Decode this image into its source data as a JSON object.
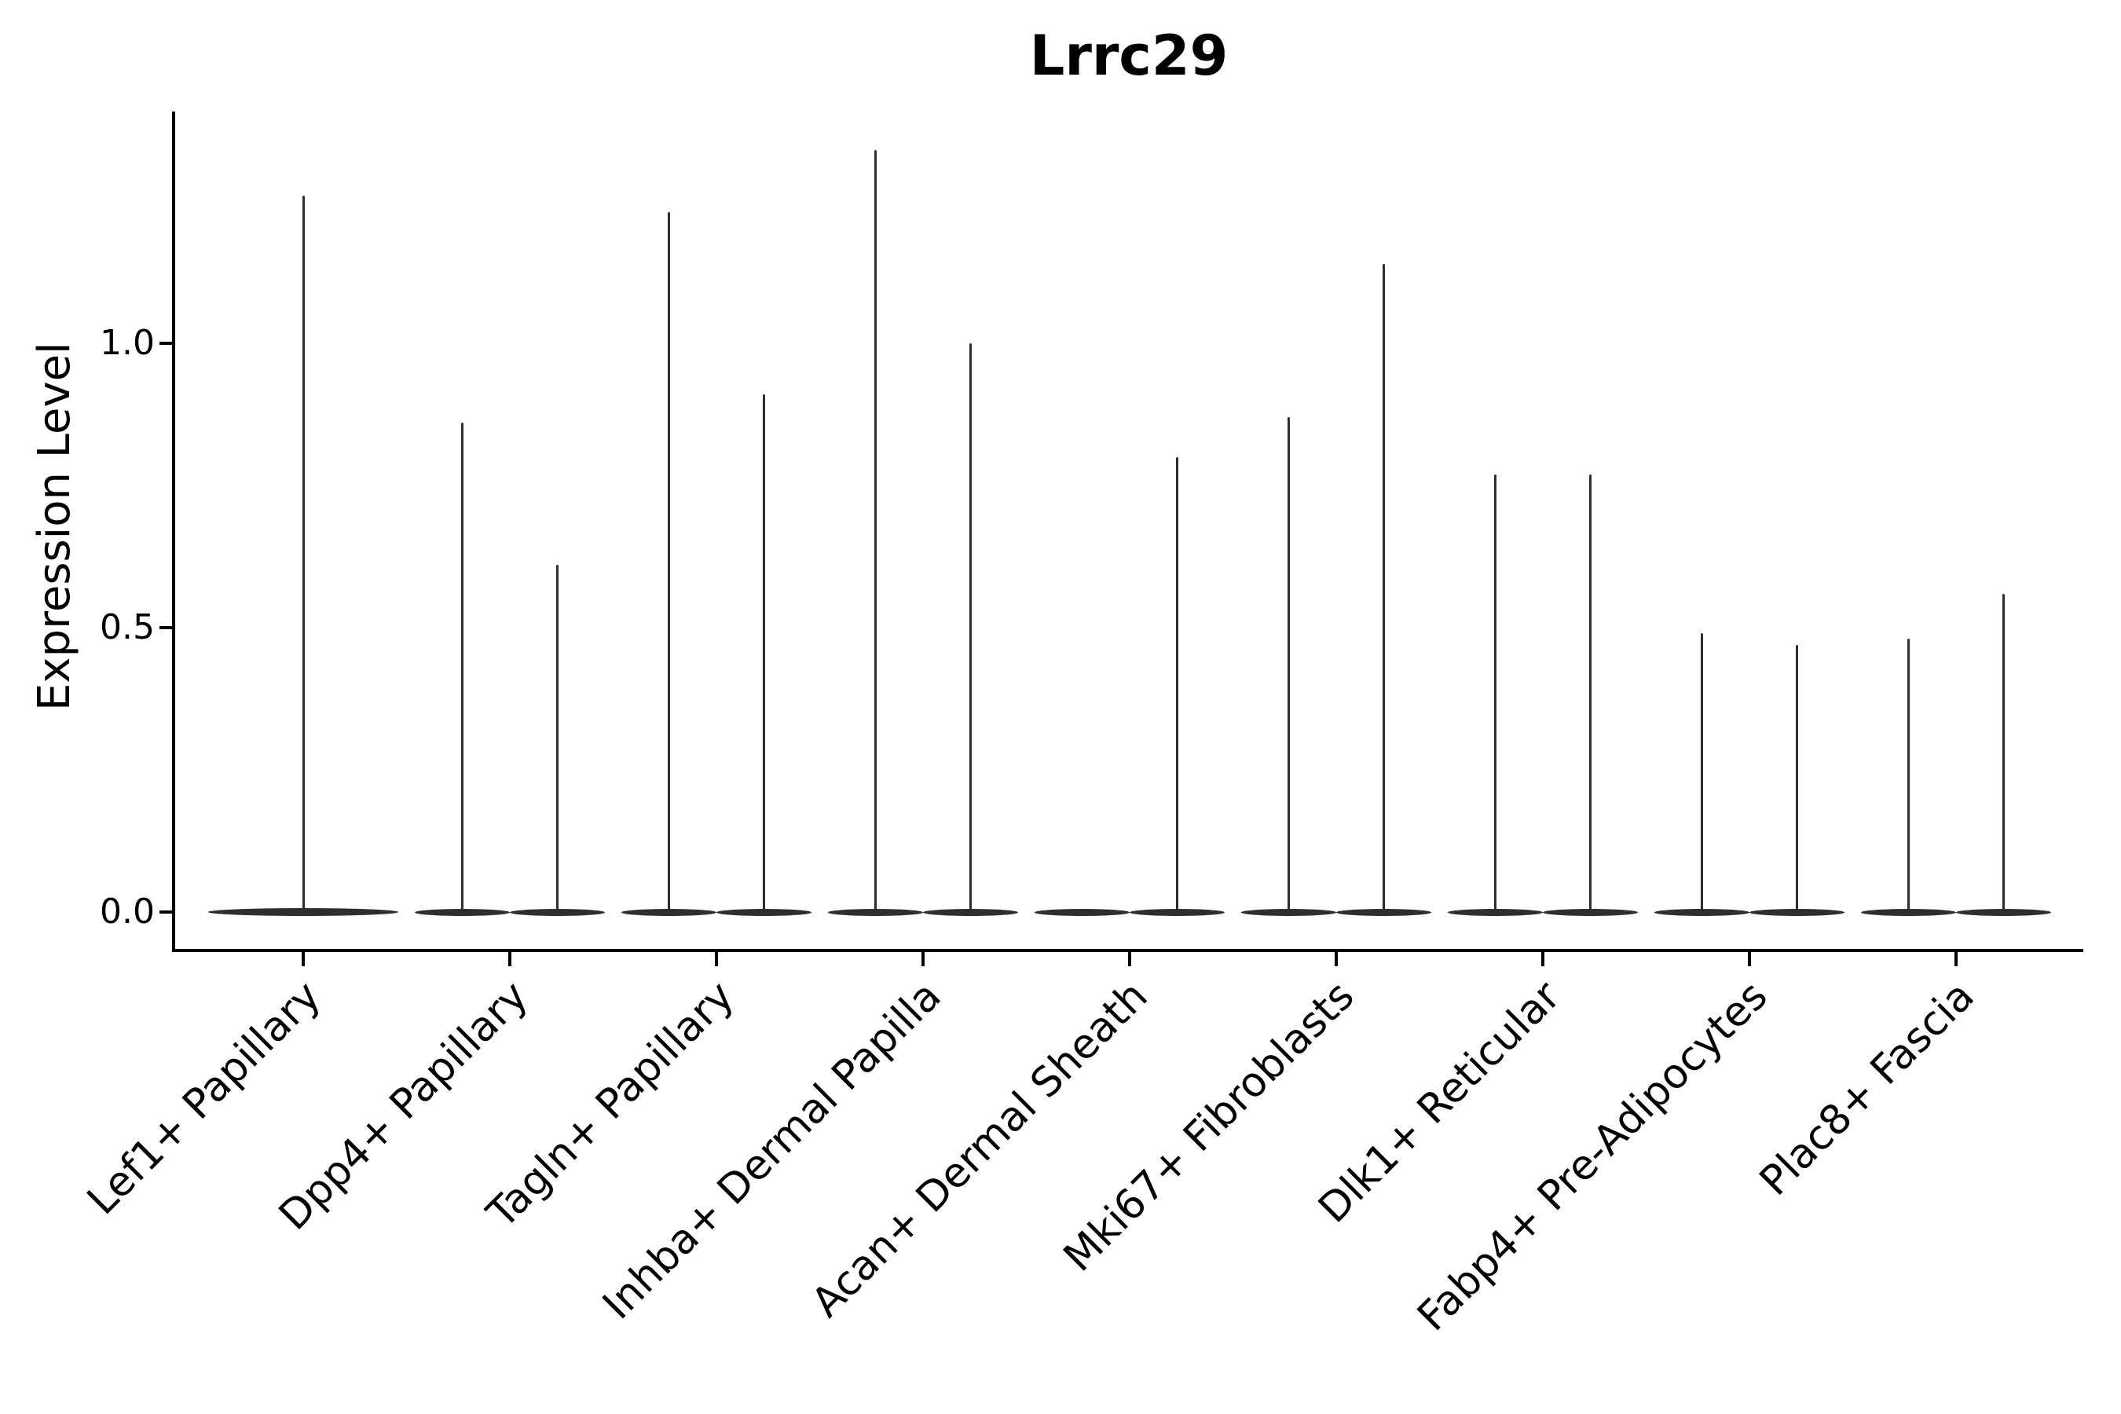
{
  "title": "Lrrc29",
  "ylabel": "Expression Level",
  "chart_data": {
    "type": "violin",
    "title": "Lrrc29",
    "xlabel": "",
    "ylabel": "Expression Level",
    "yticks": [
      "0.0",
      "0.5",
      "1.0"
    ],
    "ylim": [
      -0.07,
      1.41
    ],
    "grid": false,
    "legend": "none",
    "colors": {
      "violin": "#2e2e2e",
      "axis": "#000000",
      "text": "#000000"
    },
    "note": "Single-cell expression violin plot; nearly all cells at 0 so each violin renders as a flat lens at 0 with a thin needle up to the max expressing cell. Most categories contain two half-width violins; Lef1+ Papillary has one full-width violin; Acan+ Dermal Sheath has a needle only in its right half.",
    "categories": [
      "Lef1+ Papillary",
      "Dpp4+ Papillary",
      "Tagln+ Papillary",
      "Inhba+ Dermal Papilla",
      "Acan+ Dermal Sheath",
      "Mki67+ Fibroblasts",
      "Dlk1+ Reticular",
      "Fabp4+ Pre-Adipocytes",
      "Plac8+ Fascia"
    ],
    "violins": [
      {
        "category": "Lef1+ Papillary",
        "layout": "single",
        "maxima": [
          1.26
        ]
      },
      {
        "category": "Dpp4+ Papillary",
        "layout": "double",
        "maxima": [
          0.86,
          0.61
        ]
      },
      {
        "category": "Tagln+ Papillary",
        "layout": "double",
        "maxima": [
          1.23,
          0.91
        ]
      },
      {
        "category": "Inhba+ Dermal Papilla",
        "layout": "double",
        "maxima": [
          1.34,
          1.0
        ]
      },
      {
        "category": "Acan+ Dermal Sheath",
        "layout": "double",
        "maxima": [
          0,
          0.8
        ]
      },
      {
        "category": "Mki67+ Fibroblasts",
        "layout": "double",
        "maxima": [
          0.87,
          1.14
        ]
      },
      {
        "category": "Dlk1+ Reticular",
        "layout": "double",
        "maxima": [
          0.77,
          0.77
        ]
      },
      {
        "category": "Fabp4+ Pre-Adipocytes",
        "layout": "double",
        "maxima": [
          0.49,
          0.47
        ]
      },
      {
        "category": "Plac8+ Fascia",
        "layout": "double",
        "maxima": [
          0.48,
          0.56
        ]
      }
    ]
  }
}
